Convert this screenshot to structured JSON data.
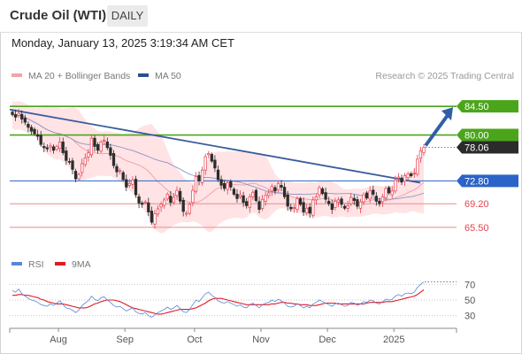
{
  "header": {
    "title": "Crude Oil (WTI)",
    "period": "DAILY",
    "datetime": "Monday, January 13, 2025 3:19:34 AM CET"
  },
  "legend": {
    "ma20_label": "MA 20 + Bollinger Bands",
    "ma50_label": "MA 50",
    "rsi_label": "RSI",
    "ma9_label": "9MA",
    "attribution": "Research © 2025 Trading Central"
  },
  "colors": {
    "candle_up": "#e3404f",
    "candle_down": "#2c2c2c",
    "bollinger_fill": "#ffd9dc",
    "ma20": "#f1a3ab",
    "ma50": "#8f93c6",
    "trendline": "#3a5c9e",
    "arrow": "#2f5fa8",
    "resistance": "#4ba51b",
    "pivot": "#2b63c8",
    "support": "#ef8a8a",
    "last_price": "#2b2b2b",
    "rsi": "#5a86d8",
    "rsi_ma9": "#e11b22"
  },
  "chart_data": [
    {
      "type": "candlestick",
      "title": "Crude Oil (WTI)",
      "period": "DAILY",
      "y_range": [
        62,
        88
      ],
      "x_tick_labels": [
        "Aug",
        "Sep",
        "Oct",
        "Nov",
        "Dec",
        "2025"
      ],
      "levels": [
        {
          "label": "84.50",
          "value": 84.5,
          "kind": "resistance"
        },
        {
          "label": "80.00",
          "value": 80.0,
          "kind": "resistance"
        },
        {
          "label": "78.06",
          "value": 78.06,
          "kind": "last"
        },
        {
          "label": "72.80",
          "value": 72.8,
          "kind": "pivot"
        },
        {
          "label": "69.20",
          "value": 69.2,
          "kind": "support"
        },
        {
          "label": "65.50",
          "value": 65.5,
          "kind": "support"
        }
      ],
      "trendline": {
        "start": 84.0,
        "end": 72.5
      },
      "forecast_arrow": {
        "from": 78.06,
        "to": 84.5
      },
      "close": [
        83.2,
        82.8,
        83.4,
        82.5,
        82.0,
        81.2,
        80.6,
        80.2,
        79.8,
        78.5,
        78.0,
        77.8,
        78.3,
        77.6,
        78.2,
        78.9,
        77.2,
        76.0,
        75.8,
        74.6,
        73.1,
        73.8,
        75.5,
        76.4,
        77.2,
        79.5,
        78.2,
        77.6,
        78.9,
        79.2,
        78.0,
        76.8,
        75.2,
        74.2,
        74.4,
        73.0,
        71.8,
        72.4,
        72.9,
        70.6,
        69.3,
        69.1,
        69.5,
        67.9,
        66.3,
        67.6,
        68.4,
        69.1,
        69.8,
        70.7,
        69.4,
        70.2,
        71.3,
        69.6,
        68.0,
        67.7,
        69.1,
        71.3,
        73.5,
        72.8,
        74.5,
        76.6,
        77.1,
        75.9,
        74.8,
        73.0,
        72.1,
        71.6,
        72.5,
        71.8,
        70.7,
        70.0,
        70.6,
        69.4,
        68.9,
        70.3,
        71.0,
        69.7,
        68.3,
        69.9,
        70.5,
        70.9,
        71.9,
        71.2,
        72.4,
        71.8,
        70.3,
        68.8,
        68.4,
        68.6,
        70.0,
        69.1,
        67.9,
        68.5,
        67.7,
        69.8,
        70.3,
        71.7,
        70.8,
        69.9,
        69.2,
        68.3,
        69.6,
        69.8,
        69.1,
        68.5,
        68.9,
        70.2,
        69.7,
        68.8,
        69.5,
        70.6,
        70.1,
        71.2,
        70.7,
        69.6,
        69.2,
        70.3,
        71.6,
        70.9,
        71.2,
        72.9,
        73.4,
        72.6,
        73.6,
        73.9,
        73.6,
        74.0,
        76.2,
        77.5,
        78.06
      ]
    },
    {
      "type": "line",
      "title": "RSI",
      "y_range": [
        15,
        85
      ],
      "y_ticks": [
        70,
        50,
        30
      ],
      "series": [
        {
          "name": "RSI",
          "values": [
            62,
            60,
            64,
            58,
            55,
            52,
            50,
            49,
            47,
            44,
            43,
            42,
            45,
            43,
            46,
            49,
            44,
            40,
            39,
            37,
            34,
            37,
            43,
            46,
            49,
            55,
            51,
            49,
            53,
            54,
            50,
            47,
            43,
            41,
            42,
            39,
            36,
            38,
            40,
            35,
            33,
            32,
            34,
            30,
            28,
            31,
            34,
            36,
            38,
            41,
            38,
            40,
            43,
            39,
            35,
            34,
            38,
            44,
            50,
            48,
            53,
            58,
            60,
            56,
            53,
            49,
            47,
            46,
            48,
            46,
            44,
            42,
            44,
            41,
            40,
            44,
            46,
            43,
            40,
            44,
            46,
            47,
            50,
            48,
            51,
            49,
            46,
            42,
            41,
            42,
            45,
            43,
            40,
            42,
            40,
            45,
            47,
            50,
            48,
            46,
            44,
            42,
            45,
            46,
            44,
            42,
            43,
            47,
            46,
            43,
            45,
            48,
            47,
            50,
            49,
            46,
            45,
            48,
            51,
            50,
            51,
            55,
            57,
            55,
            58,
            59,
            58,
            60,
            66,
            70,
            73
          ]
        },
        {
          "name": "9MA",
          "values": [
            56,
            56,
            57,
            57,
            56,
            56,
            55,
            54,
            53,
            51,
            50,
            48,
            47,
            46,
            45,
            45,
            45,
            44,
            43,
            42,
            41,
            40,
            40,
            40,
            41,
            43,
            45,
            46,
            48,
            49,
            50,
            50,
            50,
            49,
            48,
            46,
            44,
            42,
            40,
            39,
            38,
            37,
            36,
            35,
            34,
            33,
            32,
            32,
            33,
            34,
            35,
            36,
            37,
            38,
            38,
            38,
            38,
            39,
            40,
            42,
            44,
            46,
            49,
            51,
            52,
            52,
            52,
            51,
            50,
            49,
            48,
            47,
            46,
            45,
            44,
            44,
            44,
            44,
            44,
            44,
            44,
            44,
            45,
            45,
            46,
            47,
            47,
            46,
            46,
            45,
            45,
            44,
            44,
            44,
            43,
            43,
            43,
            44,
            45,
            46,
            46,
            46,
            46,
            45,
            45,
            45,
            45,
            45,
            45,
            45,
            45,
            45,
            46,
            47,
            47,
            47,
            47,
            47,
            48,
            48,
            48,
            49,
            50,
            51,
            52,
            53,
            54,
            55,
            57,
            60,
            63
          ]
        }
      ]
    }
  ]
}
